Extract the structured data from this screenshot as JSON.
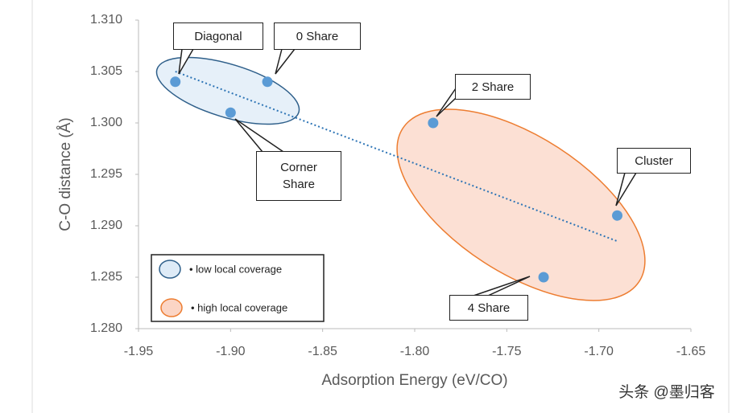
{
  "chart_data": {
    "type": "scatter",
    "xlabel": "Adsorption Energy (eV/CO)",
    "ylabel": "C-O distance (Å)",
    "xlim": [
      -1.95,
      -1.65
    ],
    "xticks": [
      -1.95,
      {
        "value": -1.9,
        "label": "-1.90"
      },
      -1.85,
      {
        "value": -1.8,
        "label": "-1.80"
      },
      -1.75,
      {
        "value": -1.7,
        "label": "-1.70"
      },
      -1.65
    ],
    "ylim": [
      1.28,
      1.31
    ],
    "yticks": [
      {
        "value": 1.28,
        "label": "1.280"
      },
      1.285,
      {
        "value": 1.29,
        "label": "1.290"
      },
      1.295,
      {
        "value": 1.3,
        "label": "1.300"
      },
      1.305,
      {
        "value": 1.31,
        "label": "1.310"
      }
    ],
    "series": [
      {
        "name": "• low local coverage",
        "color": "#5b9bd5",
        "ellipse_fill": "#deebf7",
        "ellipse_stroke": "#2e5f8a",
        "x": [
          -1.93,
          -1.88,
          -1.9
        ],
        "y": [
          1.304,
          1.304,
          1.301
        ],
        "labels": [
          "Diagonal",
          "0 Share",
          "Corner Share"
        ]
      },
      {
        "name": "• high local coverage",
        "color": "#5b9bd5",
        "ellipse_fill": "#fbd5c5",
        "ellipse_stroke": "#ed7d31",
        "x": [
          -1.79,
          -1.69,
          -1.73
        ],
        "y": [
          1.3,
          1.291,
          1.285
        ],
        "labels": [
          "2 Share",
          "Cluster",
          "4 Share"
        ]
      }
    ],
    "trendline": {
      "x": [
        -1.93,
        -1.69
      ],
      "y": [
        1.305,
        1.2885
      ],
      "color": "#2e75b6"
    },
    "watermark": "头条 @墨归客"
  }
}
